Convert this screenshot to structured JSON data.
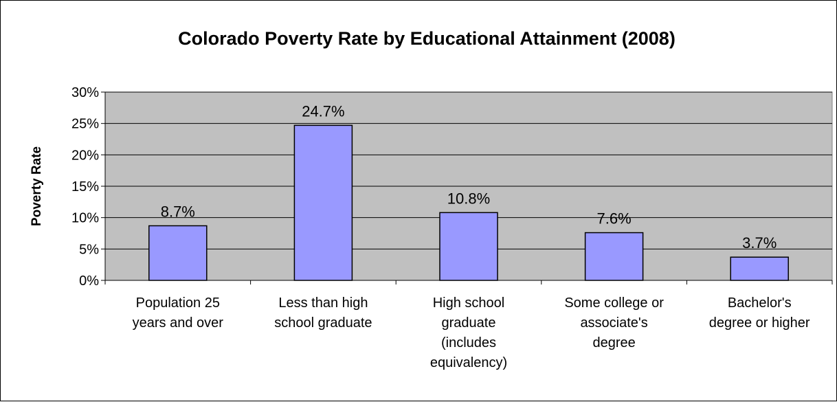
{
  "chart_data": {
    "type": "bar",
    "title": "Colorado Poverty Rate by Educational Attainment (2008)",
    "xlabel": "",
    "ylabel": "Poverty Rate",
    "ylim": [
      0,
      30
    ],
    "yticks": [
      0,
      5,
      10,
      15,
      20,
      25,
      30
    ],
    "ytick_labels": [
      "0%",
      "5%",
      "10%",
      "15%",
      "20%",
      "25%",
      "30%"
    ],
    "categories": [
      "Population 25 years and over",
      "Less than high school graduate",
      "High school graduate (includes equivalency)",
      "Some college or associate's degree",
      "Bachelor's degree or higher"
    ],
    "category_lines": [
      [
        "Population 25",
        "years and over"
      ],
      [
        "Less than high",
        "school graduate"
      ],
      [
        "High school",
        "graduate",
        "(includes",
        "equivalency)"
      ],
      [
        "Some college or",
        "associate's",
        "degree"
      ],
      [
        "Bachelor's",
        "degree or higher"
      ]
    ],
    "values": [
      8.7,
      24.7,
      10.8,
      7.6,
      3.7
    ],
    "data_labels": [
      "8.7%",
      "24.7%",
      "10.8%",
      "7.6%",
      "3.7%"
    ],
    "grid": true,
    "legend": false,
    "colors": {
      "bar_fill": "#9999ff",
      "plot_background": "#c0c0c0",
      "gridline": "#000000"
    }
  }
}
